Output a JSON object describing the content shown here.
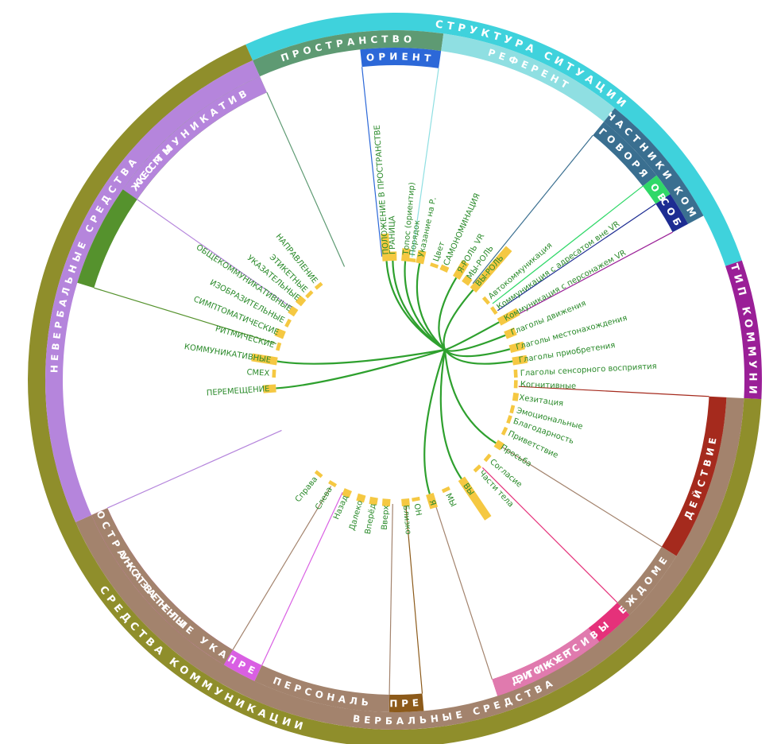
{
  "title": "",
  "colors": {
    "link": "#2ea02e",
    "bar": "#f5c842",
    "leaf_text": "#2a8a2a"
  },
  "rings": {
    "outer": [
      {
        "id": "struct",
        "label": "СТРУКТУРА СИТУАЦИИ",
        "color": "#3fd2dc",
        "start": -24,
        "end": 71
      },
      {
        "id": "tip",
        "label": "ТИП КОММУНИ",
        "color": "#9a1f97",
        "start": 71,
        "end": 93
      },
      {
        "id": "sredstva",
        "label": "СРЕДСТВА КОММУНИКАЦИИ",
        "color": "#8f8e2b",
        "start": 93,
        "end": 336
      }
    ],
    "middle": [
      {
        "id": "prostr",
        "label": "ПРОСТРАНСТВО",
        "color": "#5e9a73",
        "start": -24,
        "end": 8
      },
      {
        "id": "referent",
        "label": "РЕФЕРЕНТ",
        "color": "#8fdfe2",
        "start": 8,
        "end": 39
      },
      {
        "id": "uchast",
        "label": "УЧАСТНИКИ КОММ",
        "color": "#3a6f90",
        "start": 39,
        "end": 62
      },
      {
        "id": "verbal",
        "label": "ВЕРБАЛЬНЫЕ СРЕДСТВА",
        "color": "#a3836d",
        "start": 93,
        "end": 246
      },
      {
        "id": "neverbal",
        "label": "НЕВЕРБАЛЬНЫЕ СРЕДСТВА",
        "color": "#b585dc",
        "start": 246,
        "end": 336
      }
    ],
    "inner": [
      {
        "id": "orient",
        "label": "ОРИЕНТ",
        "color": "#2c68d8",
        "start": -6,
        "end": 8
      },
      {
        "id": "govorya",
        "label": "ГОВОРЯ",
        "color": "#3a6f90",
        "start": 39,
        "end": 52
      },
      {
        "id": "gov",
        "label": "ГОВ",
        "color": "#2fd868",
        "start": 52,
        "end": 56
      },
      {
        "id": "sob",
        "label": "СОБ",
        "color": "#1d2c92",
        "start": 56,
        "end": 62
      },
      {
        "id": "deistvie",
        "label": "ДЕЙСТВИЕ",
        "color": "#a52a1d",
        "start": 93,
        "end": 122
      },
      {
        "id": "mezhd",
        "label": "МЕЖДОМЕТИ",
        "color": "#a3836d",
        "start": 122,
        "end": 135
      },
      {
        "id": "diskurs",
        "label": "ДИСКУРСИВЫ",
        "color": "#e5317a",
        "start": 135,
        "end": 162
      },
      {
        "id": "etiket",
        "label": "ЭТИКЕТ",
        "color": "#e07aae",
        "start": 142,
        "end": 162
      },
      {
        "id": "pre1",
        "label": "ПРЕ",
        "color": "#8c5a1a",
        "start": 175,
        "end": 181
      },
      {
        "id": "personal",
        "label": "ПЕРСОНАЛЬ",
        "color": "#a3836d",
        "start": 181,
        "end": 205
      },
      {
        "id": "pre2",
        "label": "ПРЕ",
        "color": "#d95fe3",
        "start": 205,
        "end": 211
      },
      {
        "id": "ukazateli",
        "label": "УКАЗАТЕЛИ",
        "color": "#e33cd9",
        "start": 211,
        "end": 246
      },
      {
        "id": "prostr_uk",
        "label": "ПРОСТРАНСТВЕННЫЕ УКАЗА",
        "color": "#a3836d",
        "start": 211,
        "end": 246
      },
      {
        "id": "zhesty",
        "label": "ЖЕСТЫ",
        "color": "#55922d",
        "start": 287,
        "end": 336
      },
      {
        "id": "kommunikativ",
        "label": "КОММУНИКАТИВ",
        "color": "#b585dc",
        "start": 305,
        "end": 336
      }
    ]
  },
  "leaves": [
    {
      "label": "ПОЛОЖЕНИЕ В ПРОСТРАНСТВЕ",
      "bar": 0.15,
      "angle": -4
    },
    {
      "label": "ГРАНИЦА",
      "bar": 0.05,
      "angle": -1
    },
    {
      "label": "Топос (ориентир)",
      "bar": 0.07,
      "angle": 5
    },
    {
      "label": "Порядок",
      "bar": 0.02,
      "angle": 8
    },
    {
      "label": "Указание на Р.",
      "bar": 0.07,
      "angle": 12
    },
    {
      "label": "Цвет",
      "bar": 0.02,
      "angle": 19
    },
    {
      "label": "САМОНОМИНАЦИЯ",
      "bar": 0.03,
      "angle": 24
    },
    {
      "label": "Я-РОЛЬ VR",
      "bar": 0.1,
      "angle": 31
    },
    {
      "label": "МЫ-РОЛЬ",
      "bar": 0.04,
      "angle": 36
    },
    {
      "label": "ВЫ-РОЛЬ",
      "bar": 0.3,
      "angle": 41
    },
    {
      "label": "Автокоммуникация",
      "bar": 0.02,
      "angle": 49
    },
    {
      "label": "Коммуникация с адресатом вне VR",
      "bar": 0.02,
      "angle": 55
    },
    {
      "label": "Коммуникация с персонажем VR",
      "bar": 0.12,
      "angle": 61
    },
    {
      "label": "Глаголы движения",
      "bar": 0.06,
      "angle": 68
    },
    {
      "label": "Глаголы местонахождения",
      "bar": 0.08,
      "angle": 75
    },
    {
      "label": "Глаголы приобретения",
      "bar": 0.08,
      "angle": 81
    },
    {
      "label": "Глаголы сенсорного восприятия",
      "bar": 0.02,
      "angle": 87
    },
    {
      "label": "Когнитивные",
      "bar": 0.02,
      "angle": 92
    },
    {
      "label": "Хезитация",
      "bar": 0.03,
      "angle": 98
    },
    {
      "label": "Эмоциональные",
      "bar": 0.02,
      "angle": 104
    },
    {
      "label": "Благодарность",
      "bar": 0.02,
      "angle": 109
    },
    {
      "label": "Приветствие",
      "bar": 0.02,
      "angle": 115
    },
    {
      "label": "Просьба",
      "bar": 0.04,
      "angle": 122
    },
    {
      "label": "Согласие",
      "bar": 0.02,
      "angle": 130
    },
    {
      "label": "Части тела",
      "bar": 0.02,
      "angle": 137
    },
    {
      "label": "ВЫ",
      "bar": 0.26,
      "angle": 146
    },
    {
      "label": "МЫ",
      "bar": 0.02,
      "angle": 155
    },
    {
      "label": "Я",
      "bar": 0.08,
      "angle": 163
    },
    {
      "label": "ОН",
      "bar": 0.02,
      "angle": 170
    },
    {
      "label": "Близко",
      "bar": 0.04,
      "angle": 175
    },
    {
      "label": "Вверх",
      "bar": 0.04,
      "angle": 184
    },
    {
      "label": "Вперёд",
      "bar": 0.04,
      "angle": 190
    },
    {
      "label": "Далеко",
      "bar": 0.04,
      "angle": 196
    },
    {
      "label": "Назад",
      "bar": 0.04,
      "angle": 203
    },
    {
      "label": "Слева",
      "bar": 0.02,
      "angle": 211
    },
    {
      "label": "Справа",
      "bar": 0.02,
      "angle": 219
    },
    {
      "label": "ПЕРЕМЕЩЕНИЕ",
      "bar": 0.07,
      "angle": 266
    },
    {
      "label": "СМЕХ",
      "bar": 0.02,
      "angle": 273
    },
    {
      "label": "КОММУНИКАТИВНЫЕ",
      "bar": 0.14,
      "angle": 279
    },
    {
      "label": "РИТМИЧЕСКИЕ",
      "bar": 0.02,
      "angle": 286
    },
    {
      "label": "СИМПТОМАТИЧЕСКИЕ",
      "bar": 0.05,
      "angle": 292
    },
    {
      "label": "ИЗОБРАЗИТЕЛЬНЫЕ",
      "bar": 0.02,
      "angle": 298
    },
    {
      "label": "ОБЩЕКОММУНИКАТИВНЫЕ",
      "bar": 0.04,
      "angle": 304
    },
    {
      "label": "УКАЗАТЕЛЬНЫЕ",
      "bar": 0.04,
      "angle": 310
    },
    {
      "label": "ЭТИКЕТНЫЕ",
      "bar": 0.02,
      "angle": 315
    },
    {
      "label": "НАПРАВЛЕНИЕ",
      "bar": 0.02,
      "angle": 321
    }
  ],
  "links": [
    "ПОЛОЖЕНИЕ В ПРОСТРАНСТВЕ",
    "ГРАНИЦА",
    "Топос (ориентир)",
    "Указание на Р.",
    "Я-РОЛЬ VR",
    "ВЫ-РОЛЬ",
    "Коммуникация с персонажем VR",
    "Глаголы движения",
    "Глаголы местонахождения",
    "Глаголы приобретения",
    "ВЫ",
    "Я",
    "КОММУНИКАТИВНЫЕ",
    "ПЕРЕМЕЩЕНИЕ",
    "Просьба"
  ],
  "dividers": [
    {
      "angle": -6,
      "color": "#2c68d8"
    },
    {
      "angle": 8,
      "color": "#8fdfe2"
    },
    {
      "angle": 39,
      "color": "#3a6f90"
    },
    {
      "angle": 52,
      "color": "#2fd868"
    },
    {
      "angle": 56,
      "color": "#1d2c92"
    },
    {
      "angle": 62,
      "color": "#9a1f97"
    },
    {
      "angle": 93,
      "color": "#a52a1d"
    },
    {
      "angle": 122,
      "color": "#a3836d"
    },
    {
      "angle": 135,
      "color": "#e5317a"
    },
    {
      "angle": 162,
      "color": "#a3836d"
    },
    {
      "angle": 175,
      "color": "#8c5a1a"
    },
    {
      "angle": 181,
      "color": "#a3836d"
    },
    {
      "angle": 205,
      "color": "#d95fe3"
    },
    {
      "angle": 211,
      "color": "#a3836d"
    },
    {
      "angle": 246,
      "color": "#b585dc"
    },
    {
      "angle": 287,
      "color": "#55922d"
    },
    {
      "angle": 305,
      "color": "#b585dc"
    },
    {
      "angle": 336,
      "color": "#5e9a73"
    }
  ]
}
